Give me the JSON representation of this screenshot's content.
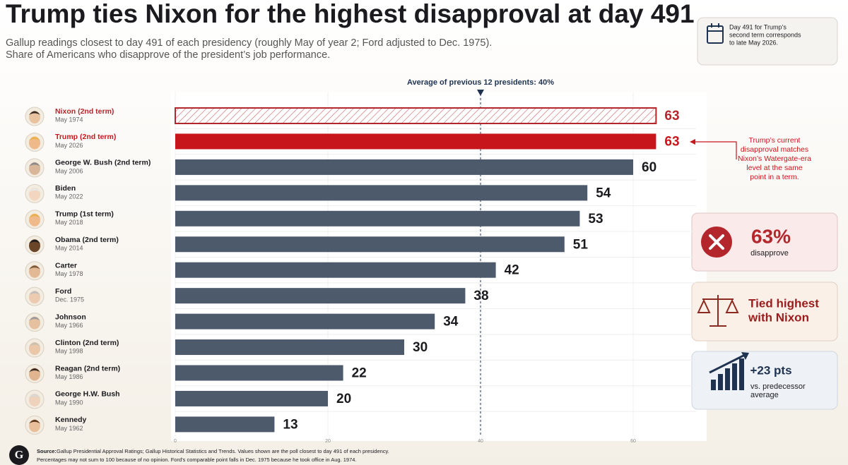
{
  "header": {
    "title": "Trump ties Nixon for the highest disapproval at day 491",
    "subtitle": [
      "Gallup readings closest to day 491 of each presidency (roughly May of year 2; Ford adjusted to Dec. 1975).",
      "Share of Americans who disapprove of the president’s job performance."
    ]
  },
  "note": [
    "Day 491 for Trump’s",
    "second term corresponds",
    "to late May 2026."
  ],
  "annotation": [
    "Trump’s current",
    "disapproval matches",
    "Nixon’s Watergate-era",
    "level at the same",
    "point in a term."
  ],
  "cards": [
    {
      "value": "63%",
      "text": [
        "disapprove"
      ]
    },
    {
      "value": "Tied highest",
      "text": [
        "with Nixon"
      ]
    },
    {
      "value": "+23 pts",
      "text": [
        "vs. predecessor",
        "average"
      ]
    }
  ],
  "footer": {
    "source_label": "Source:",
    "source": "Gallup Presidential Approval Ratings; Gallup Historical Statistics and Trends. Values shown are the poll closest to day 491 of each presidency.",
    "note": "Percentages may not sum to 100 because of no opinion. Ford’s comparable point falls in Dec. 1975 because he took office in Aug. 1974."
  },
  "chart_data": {
    "type": "bar",
    "orientation": "horizontal",
    "categories": [
      "Nixon (2nd term)",
      "Trump (2nd term)",
      "George W. Bush (2nd term)",
      "Biden",
      "Trump (1st term)",
      "Obama (2nd term)",
      "Carter",
      "Ford",
      "Johnson",
      "Clinton (2nd term)",
      "Reagan (2nd term)",
      "George H.W. Bush",
      "Kennedy"
    ],
    "dates": [
      "May 1974",
      "May 2026",
      "May 2006",
      "May 2022",
      "May 2018",
      "May 2014",
      "May 1978",
      "Dec. 1975",
      "May 1966",
      "May 1998",
      "May 1986",
      "May 1990",
      "May 1962"
    ],
    "values": [
      63,
      63,
      60,
      54,
      53,
      51,
      42,
      38,
      34,
      30,
      22,
      20,
      13
    ],
    "colors": [
      "#b3262b",
      "#c8161d",
      "#4c5a6b",
      "#4c5a6b",
      "#4c5a6b",
      "#4c5a6b",
      "#4c5a6b",
      "#4c5a6b",
      "#4c5a6b",
      "#4c5a6b",
      "#4c5a6b",
      "#4c5a6b",
      "#4c5a6b"
    ],
    "label_colors": [
      "#b3262b",
      "#c8161d",
      "#1b1b1f",
      "#1b1b1f",
      "#1b1b1f",
      "#1b1b1f",
      "#1b1b1f",
      "#1b1b1f",
      "#1b1b1f",
      "#1b1b1f",
      "#1b1b1f",
      "#1b1b1f",
      "#1b1b1f"
    ],
    "hatched": [
      true,
      false,
      false,
      false,
      false,
      false,
      false,
      false,
      false,
      false,
      false,
      false,
      false
    ],
    "average": {
      "value": 40,
      "label": "Average of previous 12 presidents: 40%"
    },
    "xlim": [
      0,
      70
    ],
    "xticks": [
      0,
      20,
      40,
      60
    ],
    "grid": true
  }
}
